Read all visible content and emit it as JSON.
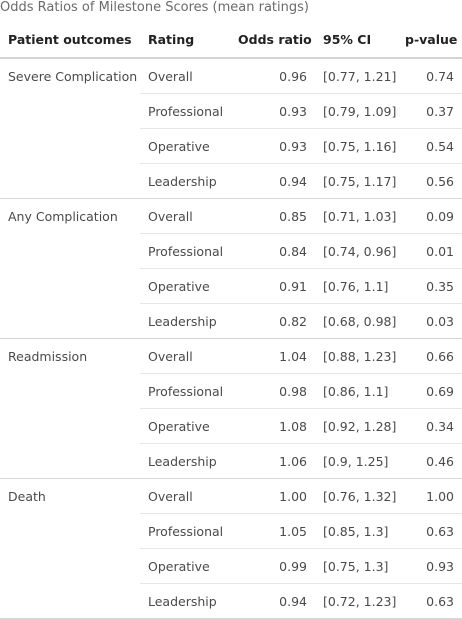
{
  "caption": "Odds Ratios of Milestone Scores (mean ratings)",
  "headers": {
    "outcome": "Patient outcomes",
    "rating": "Rating",
    "odds_ratio": "Odds ratio",
    "ci": "95% CI",
    "p_value": "p-value"
  },
  "groups": [
    {
      "outcome": "Severe Complication",
      "rows": [
        {
          "rating": "Overall",
          "odds_ratio": "0.96",
          "ci": "[0.77, 1.21]",
          "p_value": "0.74"
        },
        {
          "rating": "Professional",
          "odds_ratio": "0.93",
          "ci": "[0.79, 1.09]",
          "p_value": "0.37"
        },
        {
          "rating": "Operative",
          "odds_ratio": "0.93",
          "ci": "[0.75, 1.16]",
          "p_value": "0.54"
        },
        {
          "rating": "Leadership",
          "odds_ratio": "0.94",
          "ci": "[0.75, 1.17]",
          "p_value": "0.56"
        }
      ]
    },
    {
      "outcome": "Any Complication",
      "rows": [
        {
          "rating": "Overall",
          "odds_ratio": "0.85",
          "ci": "[0.71, 1.03]",
          "p_value": "0.09"
        },
        {
          "rating": "Professional",
          "odds_ratio": "0.84",
          "ci": "[0.74, 0.96]",
          "p_value": "0.01"
        },
        {
          "rating": "Operative",
          "odds_ratio": "0.91",
          "ci": "[0.76, 1.1]",
          "p_value": "0.35"
        },
        {
          "rating": "Leadership",
          "odds_ratio": "0.82",
          "ci": "[0.68, 0.98]",
          "p_value": "0.03"
        }
      ]
    },
    {
      "outcome": "Readmission",
      "rows": [
        {
          "rating": "Overall",
          "odds_ratio": "1.04",
          "ci": "[0.88, 1.23]",
          "p_value": "0.66"
        },
        {
          "rating": "Professional",
          "odds_ratio": "0.98",
          "ci": "[0.86, 1.1]",
          "p_value": "0.69"
        },
        {
          "rating": "Operative",
          "odds_ratio": "1.08",
          "ci": "[0.92, 1.28]",
          "p_value": "0.34"
        },
        {
          "rating": "Leadership",
          "odds_ratio": "1.06",
          "ci": "[0.9, 1.25]",
          "p_value": "0.46"
        }
      ]
    },
    {
      "outcome": "Death",
      "rows": [
        {
          "rating": "Overall",
          "odds_ratio": "1.00",
          "ci": "[0.76, 1.32]",
          "p_value": "1.00"
        },
        {
          "rating": "Professional",
          "odds_ratio": "1.05",
          "ci": "[0.85, 1.3]",
          "p_value": "0.63"
        },
        {
          "rating": "Operative",
          "odds_ratio": "0.99",
          "ci": "[0.75, 1.3]",
          "p_value": "0.93"
        },
        {
          "rating": "Leadership",
          "odds_ratio": "0.94",
          "ci": "[0.72, 1.23]",
          "p_value": "0.63"
        }
      ]
    }
  ]
}
